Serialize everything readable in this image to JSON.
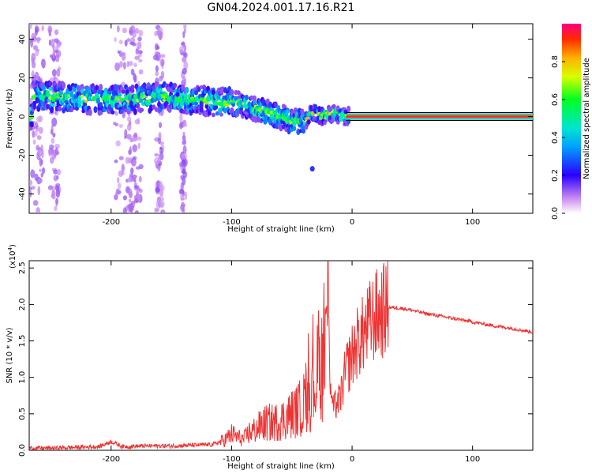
{
  "title": "GN04.2024.001.17.16.R21",
  "chart_data": [
    {
      "type": "heatmap",
      "xlabel": "Height of straight line (km)",
      "ylabel": "Frequency (Hz)",
      "xlim": [
        -268,
        150
      ],
      "ylim": [
        -50,
        48
      ],
      "x_ticks": [
        -200,
        -100,
        0,
        100
      ],
      "y_ticks": [
        -40,
        -20,
        0,
        20,
        40
      ],
      "colorbar": {
        "label": "Normalized spectral amplitude",
        "range": [
          0,
          1
        ],
        "ticks": [
          0.0,
          0.2,
          0.4,
          0.6,
          0.8
        ],
        "tick_labels": [
          "0.0",
          "0.2",
          "0.4",
          "0.6",
          "0.8"
        ]
      },
      "ridge": {
        "x": [
          -265,
          -240,
          -220,
          -200,
          -180,
          -160,
          -140,
          -120,
          -100,
          -90,
          -80,
          -70,
          -60,
          -50,
          -40,
          -35,
          -30,
          -25,
          -20,
          -15,
          -10,
          -5,
          0,
          50,
          100,
          150
        ],
        "freq": [
          11,
          10,
          9,
          9,
          9,
          10,
          9,
          8,
          7,
          6,
          4,
          2,
          0,
          -2,
          -3,
          1,
          2,
          0,
          1,
          2,
          0,
          0,
          0,
          0,
          0,
          0
        ]
      },
      "grid": false
    },
    {
      "type": "line",
      "xlabel": "Height of straight line (km)",
      "ylabel": "SNR (10 * v/v)",
      "scale_label": "(x10",
      "scale_exp": "4",
      "scale_close": ")",
      "xlim": [
        -268,
        150
      ],
      "ylim": [
        0,
        2.6
      ],
      "x_ticks": [
        -200,
        -100,
        0,
        100
      ],
      "y_ticks": [
        0.0,
        0.5,
        1.0,
        1.5,
        2.0,
        2.5
      ],
      "y_tick_labels": [
        "0.0",
        "0.5",
        "1.0",
        "1.5",
        "2.0",
        "2.5"
      ],
      "color": "#ee3333",
      "series": [
        {
          "x": [
            -268,
            -250,
            -230,
            -210,
            -200,
            -190,
            -170,
            -150,
            -130,
            -115,
            -105,
            -100,
            -95,
            -90,
            -85,
            -80,
            -75,
            -70,
            -65,
            -60,
            -55,
            -50,
            -45,
            -40,
            -35,
            -30,
            -25,
            -22,
            -20,
            -18,
            -15,
            -10,
            -5,
            0,
            5,
            10,
            15,
            20,
            25,
            30,
            40,
            50,
            60,
            70,
            80,
            90,
            100,
            110,
            120,
            130,
            140,
            150
          ],
          "y": [
            0.03,
            0.03,
            0.04,
            0.05,
            0.12,
            0.05,
            0.06,
            0.06,
            0.07,
            0.08,
            0.15,
            0.22,
            0.18,
            0.15,
            0.25,
            0.28,
            0.35,
            0.38,
            0.38,
            0.4,
            0.45,
            0.5,
            0.55,
            0.65,
            0.8,
            1.0,
            1.2,
            1.5,
            2.2,
            1.0,
            0.6,
            0.7,
            1.1,
            1.3,
            1.5,
            1.6,
            1.75,
            1.85,
            1.9,
            1.96,
            1.95,
            1.92,
            1.88,
            1.85,
            1.82,
            1.79,
            1.76,
            1.73,
            1.7,
            1.68,
            1.65,
            1.62
          ]
        }
      ],
      "grid": false
    }
  ]
}
